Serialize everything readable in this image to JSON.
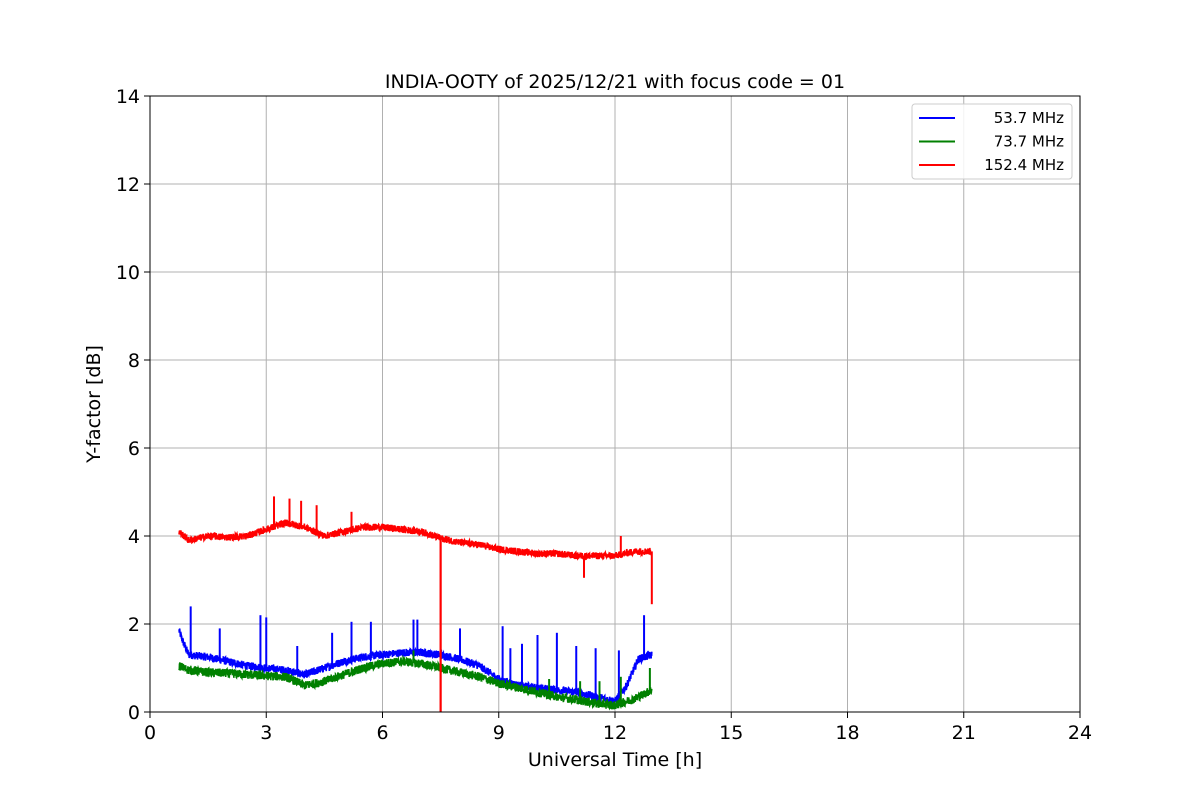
{
  "chart_data": {
    "type": "line",
    "title": "INDIA-OOTY of 2025/12/21 with focus code = 01",
    "xlabel": "Universal Time [h]",
    "ylabel": "Y-factor [dB]",
    "xlim": [
      0,
      24
    ],
    "ylim": [
      0,
      14
    ],
    "xticks": [
      0,
      3,
      6,
      9,
      12,
      15,
      18,
      21,
      24
    ],
    "yticks": [
      0,
      2,
      4,
      6,
      8,
      10,
      12,
      14
    ],
    "grid": true,
    "legend_position": "top-right",
    "series": [
      {
        "name": "53.7 MHz",
        "color": "#0000ff",
        "noise": 0.09,
        "x": [
          0.75,
          0.85,
          1.0,
          1.5,
          2.0,
          2.5,
          3.0,
          3.5,
          4.0,
          4.5,
          5.0,
          5.5,
          6.0,
          6.5,
          7.0,
          7.5,
          8.0,
          8.5,
          9.0,
          9.5,
          10.0,
          10.5,
          11.0,
          11.5,
          12.0,
          12.3,
          12.6,
          12.95
        ],
        "y": [
          1.85,
          1.6,
          1.3,
          1.25,
          1.15,
          1.05,
          1.0,
          0.95,
          0.85,
          1.0,
          1.15,
          1.25,
          1.3,
          1.35,
          1.35,
          1.3,
          1.2,
          1.05,
          0.75,
          0.6,
          0.55,
          0.5,
          0.45,
          0.35,
          0.25,
          0.6,
          1.2,
          1.3
        ],
        "spikes": [
          [
            1.05,
            2.4
          ],
          [
            1.8,
            1.9
          ],
          [
            2.85,
            2.2
          ],
          [
            3.0,
            2.15
          ],
          [
            3.8,
            1.5
          ],
          [
            4.7,
            1.8
          ],
          [
            5.2,
            2.05
          ],
          [
            5.7,
            2.05
          ],
          [
            6.8,
            2.1
          ],
          [
            6.9,
            2.1
          ],
          [
            8.0,
            1.9
          ],
          [
            9.1,
            1.95
          ],
          [
            9.3,
            1.45
          ],
          [
            9.6,
            1.55
          ],
          [
            10.0,
            1.75
          ],
          [
            10.5,
            1.8
          ],
          [
            11.0,
            1.5
          ],
          [
            11.5,
            1.45
          ],
          [
            12.1,
            1.4
          ],
          [
            12.75,
            2.2
          ]
        ]
      },
      {
        "name": "73.7 MHz",
        "color": "#008000",
        "noise": 0.1,
        "x": [
          0.75,
          1.0,
          1.5,
          2.0,
          2.5,
          3.0,
          3.5,
          4.0,
          4.5,
          5.0,
          5.5,
          6.0,
          6.5,
          7.0,
          7.5,
          8.0,
          8.5,
          9.0,
          9.5,
          10.0,
          10.5,
          11.0,
          11.5,
          12.0,
          12.5,
          12.95
        ],
        "y": [
          1.05,
          0.95,
          0.9,
          0.88,
          0.85,
          0.82,
          0.8,
          0.6,
          0.7,
          0.85,
          1.0,
          1.1,
          1.15,
          1.1,
          1.0,
          0.9,
          0.8,
          0.65,
          0.55,
          0.45,
          0.35,
          0.28,
          0.2,
          0.15,
          0.3,
          0.5
        ],
        "spikes": [
          [
            6.8,
            1.4
          ],
          [
            10.3,
            0.75
          ],
          [
            11.1,
            0.7
          ],
          [
            11.6,
            0.7
          ],
          [
            12.15,
            0.8
          ],
          [
            12.9,
            1.0
          ]
        ]
      },
      {
        "name": "152.4 MHz",
        "color": "#ff0000",
        "noise": 0.08,
        "x": [
          0.75,
          1.0,
          1.5,
          2.0,
          2.5,
          3.0,
          3.5,
          4.0,
          4.5,
          5.0,
          5.5,
          6.0,
          6.5,
          7.0,
          7.5,
          8.0,
          8.5,
          9.0,
          9.5,
          10.0,
          10.5,
          11.0,
          11.5,
          12.0,
          12.5,
          12.95
        ],
        "y": [
          4.1,
          3.9,
          4.0,
          3.97,
          4.0,
          4.15,
          4.3,
          4.2,
          4.0,
          4.1,
          4.2,
          4.2,
          4.15,
          4.1,
          3.95,
          3.85,
          3.8,
          3.7,
          3.65,
          3.6,
          3.6,
          3.55,
          3.55,
          3.55,
          3.65,
          3.65
        ],
        "spikes": [
          [
            3.2,
            4.9
          ],
          [
            3.6,
            4.85
          ],
          [
            3.9,
            4.8
          ],
          [
            4.3,
            4.7
          ],
          [
            5.2,
            4.55
          ],
          [
            11.2,
            3.05
          ],
          [
            12.15,
            4.0
          ],
          [
            12.95,
            2.45
          ]
        ],
        "dropout": [
          7.5,
          0
        ]
      }
    ]
  }
}
